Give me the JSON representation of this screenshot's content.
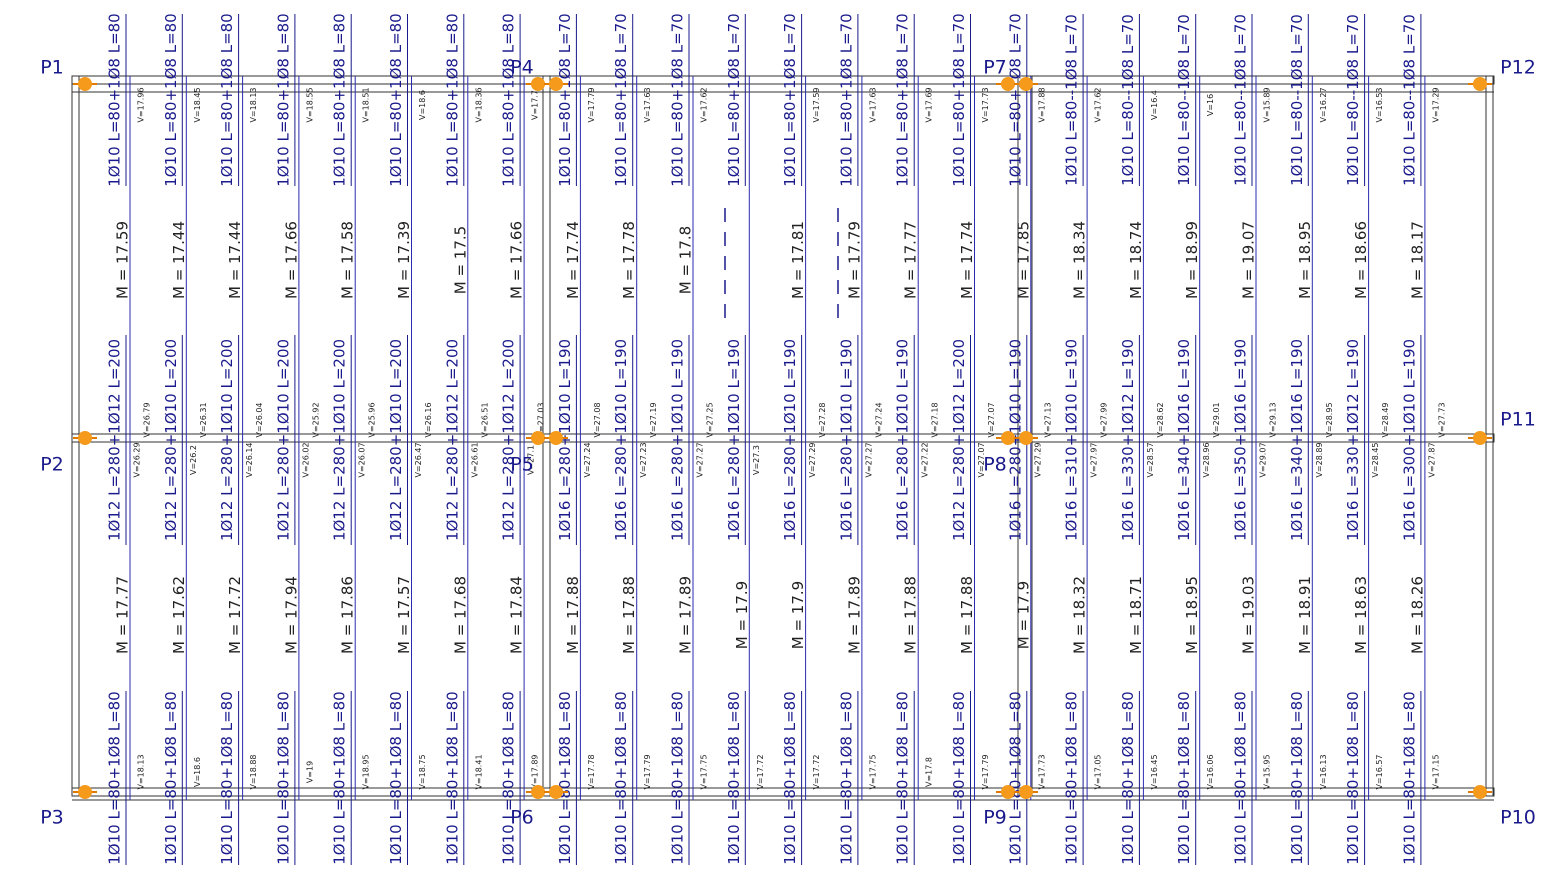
{
  "pillars": [
    "P1",
    "P2",
    "P3",
    "P4",
    "P5",
    "P6",
    "P7",
    "P8",
    "P9",
    "P10",
    "P11",
    "P12"
  ],
  "strips": [
    {
      "top": "1Ø10 L=80+1Ø8 L=80",
      "v_top": "V=17.96",
      "m_top": "M = 17.59",
      "mid": "1Ø12 L=280+1Ø12 L=200",
      "v_mid": [
        "V=26.29",
        "V=26.79"
      ],
      "m_bot": "M = 17.77",
      "v_bot": "V=18.13",
      "bottom": "1Ø10 L=80+1Ø8 L=80"
    },
    {
      "top": "1Ø10 L=80+1Ø8 L=80",
      "v_top": "V=18.45",
      "m_top": "M = 17.44",
      "mid": "1Ø12 L=280+1Ø10 L=200",
      "v_mid": [
        "V=26.2",
        "V=26.31"
      ],
      "m_bot": "M = 17.62",
      "v_bot": "V=18.6",
      "bottom": "1Ø10 L=80+1Ø8 L=80"
    },
    {
      "top": "1Ø10 L=80+1Ø8 L=80",
      "v_top": "V=18.13",
      "m_top": "M = 17.44",
      "mid": "1Ø12 L=280+1Ø10 L=200",
      "v_mid": [
        "V=26.14",
        "V=26.04"
      ],
      "m_bot": "M = 17.72",
      "v_bot": "V=18.88",
      "bottom": "1Ø10 L=80+1Ø8 L=80"
    },
    {
      "top": "1Ø10 L=80+1Ø8 L=80",
      "v_top": "V=18.55",
      "m_top": "M = 17.66",
      "mid": "1Ø12 L=280+1Ø10 L=200",
      "v_mid": [
        "V=26.02",
        "V=25.92"
      ],
      "m_bot": "M = 17.94",
      "v_bot": "V=19",
      "bottom": "1Ø10 L=80+1Ø8 L=80"
    },
    {
      "top": "1Ø10 L=80+1Ø8 L=80",
      "v_top": "V=18.51",
      "m_top": "M = 17.58",
      "mid": "1Ø12 L=280+1Ø10 L=200",
      "v_mid": [
        "V=26.07",
        "V=25.96"
      ],
      "m_bot": "M = 17.86",
      "v_bot": "V=18.95",
      "bottom": "1Ø10 L=80+1Ø8 L=80"
    },
    {
      "top": "1Ø10 L=80+1Ø8 L=80",
      "v_top": "V=18.6",
      "m_top": "M = 17.39",
      "mid": "1Ø12 L=280+1Ø10 L=200",
      "v_mid": [
        "V=26.47",
        "V=26.16"
      ],
      "m_bot": "M = 17.57",
      "v_bot": "V=18.75",
      "bottom": "1Ø10 L=80+1Ø8 L=80"
    },
    {
      "top": "1Ø10 L=80+1Ø8 L=80",
      "v_top": "V=18.36",
      "m_top": "M = 17.5",
      "mid": "1Ø12 L=280+1Ø12 L=200",
      "v_mid": [
        "V=26.61",
        "V=26.51"
      ],
      "m_bot": "M = 17.68",
      "v_bot": "V=18.41",
      "bottom": "1Ø10 L=80+1Ø8 L=80"
    },
    {
      "top": "1Ø10 L=80+1Ø8 L=80",
      "v_top": "V=17.7",
      "m_top": "M = 17.66",
      "mid": "1Ø12 L=280+1Ø12 L=200",
      "v_mid": [
        "V=27.1",
        "V=27.03"
      ],
      "m_bot": "M = 17.84",
      "v_bot": "V=17.89",
      "bottom": "1Ø10 L=80+1Ø8 L=80"
    },
    {
      "top": "1Ø10 L=80+1Ø8 L=70",
      "v_top": "V=17.79",
      "m_top": "M = 17.74",
      "mid": "1Ø16 L=280+1Ø10 L=190",
      "v_mid": [
        "V=27.24",
        "V=27.08"
      ],
      "m_bot": "M = 17.88",
      "v_bot": "V=17.78",
      "bottom": "1Ø10 L=80+1Ø8 L=80"
    },
    {
      "top": "1Ø10 L=80+1Ø8 L=70",
      "v_top": "V=17.63",
      "m_top": "M = 17.78",
      "mid": "1Ø16 L=280+1Ø10 L=190",
      "v_mid": [
        "V=27.23",
        "V=27.19"
      ],
      "m_bot": "M = 17.88",
      "v_bot": "V=17.79",
      "bottom": "1Ø10 L=80+1Ø8 L=80"
    },
    {
      "top": "1Ø10 L=80+1Ø8 L=70",
      "v_top": "V=17.62",
      "m_top": "M = 17.8",
      "mid": "1Ø16 L=280+1Ø10 L=190",
      "v_mid": [
        "V=27.27",
        "V=27.25"
      ],
      "m_bot": "M = 17.89",
      "v_bot": "V=17.75",
      "bottom": "1Ø10 L=80+1Ø8 L=80"
    },
    {
      "top": "1Ø10 L=80+1Ø8 L=70",
      "v_top": null,
      "m_top": null,
      "mid": "1Ø16 L=280+1Ø10 L=190",
      "v_mid": [
        "V=27.3"
      ],
      "m_bot": "M = 17.9",
      "v_bot": "V=17.72",
      "bottom": "1Ø10 L=80+1Ø8 L=80"
    },
    {
      "top": "1Ø10 L=80+1Ø8 L=70",
      "v_top": "V=17.59",
      "m_top": "M = 17.81",
      "mid": "1Ø16 L=280+1Ø10 L=190",
      "v_mid": [
        "V=27.29",
        "V=27.28"
      ],
      "m_bot": "M = 17.9",
      "v_bot": "V=17.72",
      "bottom": "1Ø10 L=80+1Ø8 L=80"
    },
    {
      "top": "1Ø10 L=80+1Ø8 L=70",
      "v_top": "V=17.63",
      "m_top": "M = 17.79",
      "mid": "1Ø16 L=280+1Ø10 L=190",
      "v_mid": [
        "V=27.27",
        "V=27.24"
      ],
      "m_bot": "M = 17.89",
      "v_bot": "V=17.75",
      "bottom": "1Ø10 L=80+1Ø8 L=80"
    },
    {
      "top": "1Ø10 L=80+1Ø8 L=70",
      "v_top": "V=17.69",
      "m_top": "M = 17.77",
      "mid": "1Ø16 L=280+1Ø10 L=190",
      "v_mid": [
        "V=27.22",
        "V=27.18"
      ],
      "m_bot": "M = 17.88",
      "v_bot": "V=17.8",
      "bottom": "1Ø10 L=80+1Ø8 L=80"
    },
    {
      "top": "1Ø10 L=80+1Ø8 L=70",
      "v_top": "V=17.73",
      "m_top": "M = 17.74",
      "mid": "1Ø12 L=280+1Ø12 L=200",
      "v_mid": [
        "V=27.07",
        "V=27.07"
      ],
      "m_bot": "M = 17.88",
      "v_bot": "V=17.79",
      "bottom": "1Ø10 L=80+1Ø8 L=80"
    },
    {
      "top": "1Ø10 L=80+1Ø8 L=70",
      "v_top": "V=17.88",
      "m_top": "M = 17.85",
      "mid": "1Ø16 L=280+1Ø10 L=190",
      "v_mid": [
        "V=27.29",
        "V=27.13"
      ],
      "m_bot": "M = 17.9",
      "v_bot": "V=17.73",
      "bottom": "1Ø10 L=80+1Ø8 L=80"
    },
    {
      "top": "1Ø10 L=80--1Ø8 L=70",
      "v_top": "V=17.62",
      "m_top": "M = 18.34",
      "mid": "1Ø16 L=310+1Ø10 L=190",
      "v_mid": [
        "V=27.97",
        "V=27.99"
      ],
      "m_bot": "M = 18.32",
      "v_bot": "V=17.05",
      "bottom": "1Ø10 L=80+1Ø8 L=80"
    },
    {
      "top": "1Ø10 L=80--1Ø8 L=70",
      "v_top": "V=16.4",
      "m_top": "M = 18.74",
      "mid": "1Ø16 L=330+1Ø12 L=190",
      "v_mid": [
        "V=28.57",
        "V=28.62"
      ],
      "m_bot": "M = 18.71",
      "v_bot": "V=16.45",
      "bottom": "1Ø10 L=80+1Ø8 L=80"
    },
    {
      "top": "1Ø10 L=80--1Ø8 L=70",
      "v_top": "V=16",
      "m_top": "M = 18.99",
      "mid": "1Ø16 L=340+1Ø16 L=190",
      "v_mid": [
        "V=28.96",
        "V=29.01"
      ],
      "m_bot": "M = 18.95",
      "v_bot": "V=16.06",
      "bottom": "1Ø10 L=80+1Ø8 L=80"
    },
    {
      "top": "1Ø10 L=80--1Ø8 L=70",
      "v_top": "V=15.89",
      "m_top": "M = 19.07",
      "mid": "1Ø16 L=350+1Ø16 L=190",
      "v_mid": [
        "V=29.07",
        "V=29.13"
      ],
      "m_bot": "M = 19.03",
      "v_bot": "V=15.95",
      "bottom": "1Ø10 L=80+1Ø8 L=80"
    },
    {
      "top": "1Ø10 L=80--1Ø8 L=70",
      "v_top": "V=16.27",
      "m_top": "M = 18.95",
      "mid": "1Ø16 L=340+1Ø16 L=190",
      "v_mid": [
        "V=28.89",
        "V=28.95"
      ],
      "m_bot": "M = 18.91",
      "v_bot": "V=16.13",
      "bottom": "1Ø10 L=80+1Ø8 L=80"
    },
    {
      "top": "1Ø10 L=80--1Ø8 L=70",
      "v_top": "V=16.53",
      "m_top": "M = 18.66",
      "mid": "1Ø16 L=330+1Ø12 L=190",
      "v_mid": [
        "V=28.45",
        "V=28.49"
      ],
      "m_bot": "M = 18.63",
      "v_bot": "V=16.57",
      "bottom": "1Ø10 L=80+1Ø8 L=80"
    },
    {
      "top": "1Ø10 L=80--1Ø8 L=70",
      "v_top": "V=17.29",
      "m_top": "M = 18.17",
      "mid": "1Ø16 L=300+1Ø10 L=190",
      "v_mid": [
        "V=27.87",
        "V=27.73"
      ],
      "m_bot": "M = 18.26",
      "v_bot": "V=17.15",
      "bottom": "1Ø10 L=80+1Ø8 L=80"
    }
  ]
}
